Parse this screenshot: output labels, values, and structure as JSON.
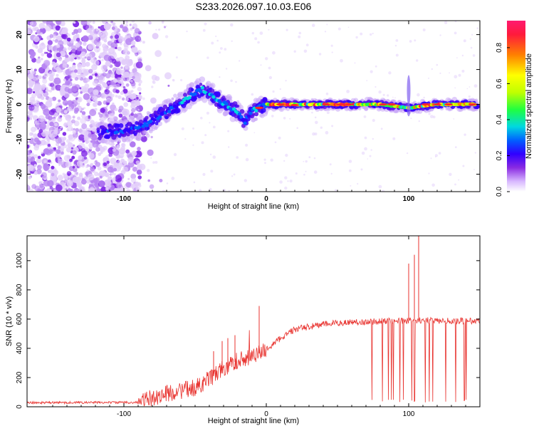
{
  "title": "S233.2026.097.10.03.E06",
  "chart_data": [
    {
      "type": "heatmap",
      "xlabel": "Height of straight line (km)",
      "ylabel": "Frequency (Hz)",
      "xlim": [
        -168,
        150
      ],
      "ylim": [
        -25,
        24
      ],
      "xticks": [
        -100,
        0,
        100
      ],
      "yticks": [
        -20,
        -10,
        0,
        10,
        20
      ],
      "colorbar": {
        "label": "Normalized spectral amplitude",
        "range": [
          0,
          0.95
        ],
        "ticks": [
          0.0,
          0.2,
          0.4,
          0.6,
          0.8
        ],
        "colors": [
          "#ffffff",
          "#d8b8ff",
          "#8a2be2",
          "#3000ff",
          "#0060ff",
          "#00d8e0",
          "#20ff40",
          "#c0ff00",
          "#ffff00",
          "#ff8000",
          "#ff1a3c",
          "#ff1a70"
        ]
      },
      "ridge": {
        "x": [
          -115,
          -100,
          -90,
          -80,
          -70,
          -60,
          -50,
          -45,
          -40,
          -35,
          -30,
          -25,
          -20,
          -15,
          -10,
          -5,
          0,
          20,
          40,
          60,
          80,
          100,
          120,
          147
        ],
        "y": [
          -8,
          -7.5,
          -7,
          -4.5,
          -2,
          0.5,
          3.5,
          4.5,
          3,
          1.5,
          0.5,
          -1,
          -2,
          -5,
          -2,
          -1,
          0,
          0,
          0,
          0,
          0,
          -1,
          0,
          0
        ]
      }
    },
    {
      "type": "line",
      "xlabel": "Height of straight line (km)",
      "ylabel": "SNR (10 * v/v)",
      "xlim": [
        -168,
        150
      ],
      "ylim": [
        0,
        1170
      ],
      "xticks": [
        -100,
        0,
        100
      ],
      "yticks": [
        0,
        200,
        400,
        600,
        800,
        1000
      ],
      "color": "#e8322e",
      "trend": {
        "x": [
          -168,
          -90,
          -85,
          -70,
          -50,
          -40,
          -30,
          -20,
          -10,
          0,
          10,
          20,
          40,
          60,
          80,
          100,
          120,
          150
        ],
        "y": [
          28,
          30,
          45,
          90,
          130,
          190,
          260,
          320,
          340,
          390,
          470,
          530,
          565,
          580,
          585,
          590,
          590,
          585
        ]
      },
      "spikes": [
        {
          "x": -37,
          "y": 380
        },
        {
          "x": -31,
          "y": 450
        },
        {
          "x": -27,
          "y": 470
        },
        {
          "x": -22,
          "y": 490
        },
        {
          "x": -5,
          "y": 690
        },
        {
          "x": 100,
          "y": 980
        },
        {
          "x": 104,
          "y": 1040
        },
        {
          "x": 107,
          "y": 1175
        }
      ]
    }
  ]
}
